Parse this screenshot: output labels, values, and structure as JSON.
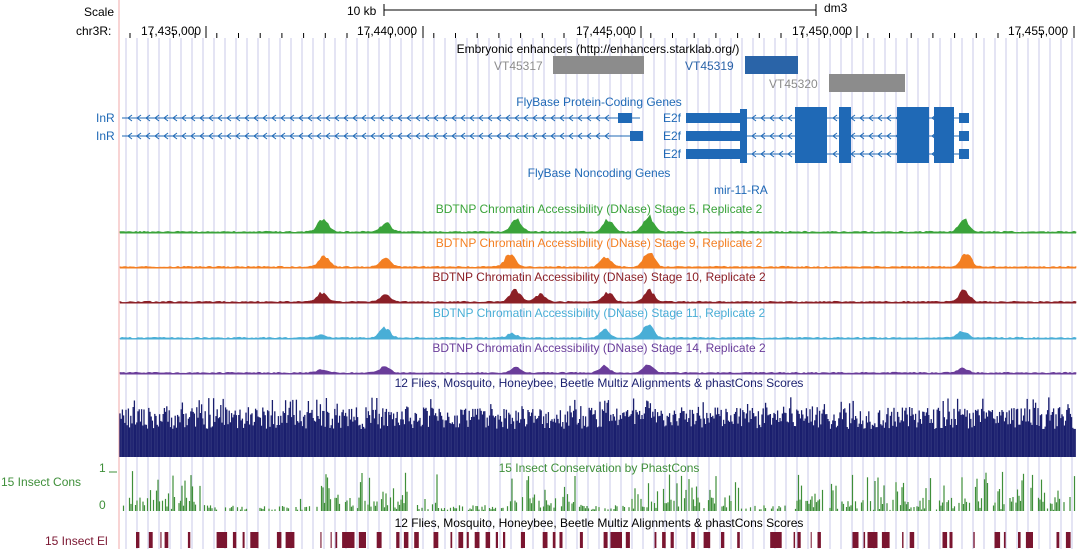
{
  "scale": {
    "label": "Scale",
    "chrom_label": "chr3R:",
    "bar_text": "10 kb",
    "assembly": "dm3",
    "ticks": [
      "17,435,000",
      "17,440,000",
      "17,445,000",
      "17,450,000",
      "17,455,000"
    ]
  },
  "enhancers": {
    "title": "Embryonic enhancers (http://enhancers.starklab.org/)",
    "items": [
      "VT45317",
      "VT45319",
      "VT45320"
    ]
  },
  "genes": {
    "title": "FlyBase Protein-Coding Genes",
    "left_labels": [
      "InR",
      "InR"
    ],
    "right_labels": [
      "E2f",
      "E2f",
      "E2f"
    ]
  },
  "noncoding": {
    "title": "FlyBase Noncoding Genes",
    "item": "mir-11-RA"
  },
  "dnase": [
    {
      "title": "BDTNP Chromatin Accessibility (DNase) Stage 5, Replicate 2",
      "color": "#3aa33a"
    },
    {
      "title": "BDTNP Chromatin Accessibility (DNase) Stage 9, Replicate 2",
      "color": "#f37f22"
    },
    {
      "title": "BDTNP Chromatin Accessibility (DNase) Stage 10, Replicate 2",
      "color": "#8b1f26"
    },
    {
      "title": "BDTNP Chromatin Accessibility (DNase) Stage 11, Replicate 2",
      "color": "#49aed6"
    },
    {
      "title": "BDTNP Chromatin Accessibility (DNase) Stage 14, Replicate 2",
      "color": "#6a3d9a"
    }
  ],
  "multiz": {
    "title": "12 Flies, Mosquito, Honeybee, Beetle Multiz Alignments & phastCons Scores",
    "color": "#1a1f6e"
  },
  "cons": {
    "title": "15 Insect Conservation by PhastCons",
    "left_label": "15 Insect Cons",
    "axis_max": "1",
    "axis_min": "0",
    "color": "#3f8f3a"
  },
  "el": {
    "title": "12 Flies, Mosquito, Honeybee, Beetle Multiz Alignments & phastCons Scores",
    "left_label": "15 Insect El",
    "color": "#7a1530"
  },
  "colors": {
    "gene": "#1f69b6",
    "enhancer_gray": "#8c8c8c",
    "enhancer_blue": "#2a64a8",
    "gridline": "#c8c8e8",
    "left_border": "#f2a8a8"
  }
}
